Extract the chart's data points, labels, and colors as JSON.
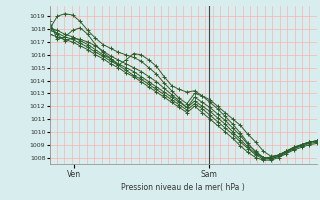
{
  "xlabel": "Pression niveau de la mer( hPa )",
  "bg_color": "#d8eeee",
  "plot_bg_color": "#d8eeee",
  "grid_color": "#ffb0b0",
  "line_color": "#2a5e2a",
  "ylim": [
    1007.5,
    1019.8
  ],
  "yticks": [
    1008,
    1009,
    1010,
    1011,
    1012,
    1013,
    1014,
    1015,
    1016,
    1017,
    1018,
    1019
  ],
  "xtick_labels": [
    "Ven",
    "Sam"
  ],
  "xtick_pos": [
    0.09,
    0.595
  ],
  "sam_line_x": 0.595,
  "lines": [
    [
      1018.0,
      1019.0,
      1019.2,
      1019.1,
      1018.6,
      1017.9,
      1017.3,
      1016.8,
      1016.5,
      1016.2,
      1016.0,
      1015.8,
      1015.5,
      1015.0,
      1014.5,
      1013.8,
      1013.2,
      1012.6,
      1012.2,
      1013.0,
      1012.8,
      1012.5,
      1012.0,
      1011.5,
      1011.0,
      1010.5,
      1009.8,
      1009.2,
      1008.5,
      1008.1,
      1008.2,
      1008.5,
      1008.8,
      1009.0,
      1009.2,
      1009.3
    ],
    [
      1018.3,
      1017.6,
      1017.1,
      1017.3,
      1017.2,
      1017.0,
      1016.7,
      1016.3,
      1015.9,
      1015.6,
      1015.3,
      1015.0,
      1014.7,
      1014.3,
      1013.9,
      1013.4,
      1012.9,
      1012.4,
      1011.9,
      1012.7,
      1012.3,
      1011.9,
      1011.4,
      1010.9,
      1010.3,
      1009.7,
      1009.0,
      1008.5,
      1008.0,
      1008.0,
      1008.2,
      1008.5,
      1008.8,
      1009.0,
      1009.2,
      1009.3
    ],
    [
      1018.1,
      1017.9,
      1017.6,
      1017.4,
      1017.1,
      1016.8,
      1016.4,
      1016.0,
      1015.7,
      1015.3,
      1015.0,
      1014.7,
      1014.3,
      1013.9,
      1013.5,
      1013.1,
      1012.7,
      1012.3,
      1011.9,
      1012.4,
      1012.0,
      1011.6,
      1011.1,
      1010.6,
      1010.0,
      1009.4,
      1008.8,
      1008.3,
      1008.0,
      1007.9,
      1008.1,
      1008.4,
      1008.7,
      1009.0,
      1009.2,
      1009.3
    ],
    [
      1017.9,
      1017.7,
      1017.4,
      1017.2,
      1016.9,
      1016.6,
      1016.2,
      1015.9,
      1015.5,
      1015.2,
      1014.8,
      1014.4,
      1014.1,
      1013.7,
      1013.3,
      1012.9,
      1012.5,
      1012.1,
      1011.7,
      1012.2,
      1011.8,
      1011.3,
      1010.8,
      1010.3,
      1009.8,
      1009.2,
      1008.7,
      1008.2,
      1007.9,
      1007.9,
      1008.1,
      1008.4,
      1008.7,
      1008.9,
      1009.1,
      1009.2
    ],
    [
      1017.6,
      1017.4,
      1017.2,
      1017.0,
      1016.7,
      1016.4,
      1016.0,
      1015.7,
      1015.3,
      1015.0,
      1014.6,
      1014.3,
      1013.9,
      1013.5,
      1013.1,
      1012.7,
      1012.3,
      1011.9,
      1011.5,
      1012.0,
      1011.5,
      1011.0,
      1010.5,
      1010.0,
      1009.5,
      1008.9,
      1008.4,
      1008.0,
      1007.8,
      1007.8,
      1008.0,
      1008.3,
      1008.6,
      1008.8,
      1009.0,
      1009.1
    ],
    [
      1018.6,
      1017.2,
      1017.4,
      1017.9,
      1018.1,
      1017.6,
      1016.8,
      1016.2,
      1015.7,
      1015.2,
      1015.6,
      1016.1,
      1016.0,
      1015.6,
      1015.1,
      1014.3,
      1013.6,
      1013.3,
      1013.1,
      1013.2,
      1012.8,
      1012.3,
      1011.8,
      1011.2,
      1010.6,
      1009.9,
      1009.1,
      1008.4,
      1008.0,
      1008.0,
      1008.2,
      1008.5,
      1008.8,
      1009.0,
      1009.2,
      1009.3
    ]
  ],
  "n_points": 36
}
